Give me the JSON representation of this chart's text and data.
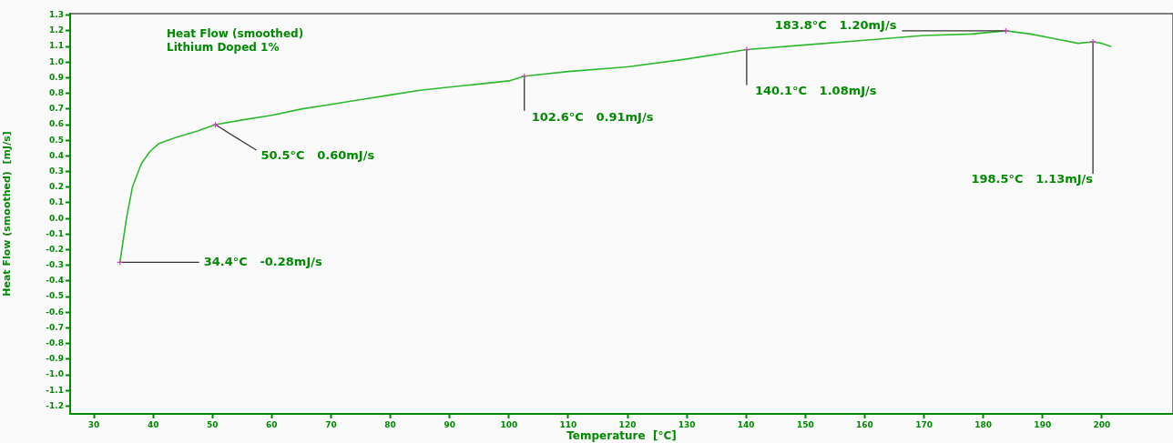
{
  "chart_data": {
    "type": "line",
    "title": "Heat Flow (smoothed)",
    "subtitle": "Lithium Doped 1%",
    "xlabel": "Temperature  [°C]",
    "ylabel": "Heat Flow (smoothed)  [mJ/s]",
    "x": [
      34.4,
      35.5,
      36.5,
      38,
      39.5,
      41,
      44,
      47.5,
      50.5,
      55,
      60,
      65,
      70,
      75,
      80,
      85,
      90,
      95,
      100,
      102.6,
      110,
      120,
      130,
      140.1,
      150,
      160,
      170,
      178,
      183.8,
      188,
      192,
      196,
      198.5,
      200,
      201.5
    ],
    "series": [
      {
        "color": "#2eb82e",
        "values": [
          -0.28,
          0.0,
          0.2,
          0.35,
          0.43,
          0.48,
          0.52,
          0.56,
          0.6,
          0.63,
          0.66,
          0.7,
          0.73,
          0.76,
          0.79,
          0.82,
          0.84,
          0.86,
          0.88,
          0.91,
          0.94,
          0.97,
          1.02,
          1.08,
          1.11,
          1.14,
          1.17,
          1.18,
          1.2,
          1.18,
          1.15,
          1.12,
          1.13,
          1.12,
          1.1
        ]
      }
    ],
    "xlim": [
      26,
      212
    ],
    "xticks": [
      30,
      40,
      50,
      60,
      70,
      80,
      90,
      100,
      110,
      120,
      130,
      140,
      150,
      160,
      170,
      180,
      190,
      200
    ],
    "ylim": [
      -1.25,
      1.31
    ],
    "yticks": [
      {
        "value": 1.3,
        "label": "1.3"
      },
      {
        "value": 1.2,
        "label": "1.2"
      },
      {
        "value": 1.1,
        "label": "1.1"
      },
      {
        "value": 1.0,
        "label": "1.0"
      },
      {
        "value": 0.9,
        "label": "0.9"
      },
      {
        "value": 0.8,
        "label": "0.8"
      },
      {
        "value": 0.7,
        "label": "0.7"
      },
      {
        "value": 0.6,
        "label": "0.6"
      },
      {
        "value": 0.5,
        "label": "0.5"
      },
      {
        "value": 0.4,
        "label": "0.4"
      },
      {
        "value": 0.3,
        "label": "0.3"
      },
      {
        "value": 0.2,
        "label": "0.2"
      },
      {
        "value": 0.1,
        "label": "0.1"
      },
      {
        "value": 0.0,
        "label": "0.0"
      },
      {
        "value": -0.1,
        "label": "-0.1"
      },
      {
        "value": -0.2,
        "label": "-0.2"
      },
      {
        "value": -0.3,
        "label": "-0.3"
      },
      {
        "value": -0.4,
        "label": "-0.4"
      },
      {
        "value": -0.5,
        "label": "-0.5"
      },
      {
        "value": -0.6,
        "label": "-0.6"
      },
      {
        "value": -0.7,
        "label": "-0.7"
      },
      {
        "value": -0.8,
        "label": "-0.8"
      },
      {
        "value": -0.9,
        "label": "-0.9"
      },
      {
        "value": -1.0,
        "label": "-1.0"
      },
      {
        "value": -1.1,
        "label": "-1.1"
      },
      {
        "value": -1.2,
        "label": "-1.2"
      }
    ],
    "grid": false,
    "legend": false,
    "marker": "none",
    "line_style": "solid",
    "annotations": [
      {
        "text": "34.4°C   -0.28mJ/s",
        "x": 34.4,
        "y": -0.28
      },
      {
        "text": "50.5°C   0.60mJ/s",
        "x": 50.5,
        "y": 0.6
      },
      {
        "text": "102.6°C   0.91mJ/s",
        "x": 102.6,
        "y": 0.91
      },
      {
        "text": "140.1°C   1.08mJ/s",
        "x": 140.1,
        "y": 1.08
      },
      {
        "text": "183.8°C   1.20mJ/s",
        "x": 183.8,
        "y": 1.2
      },
      {
        "text": "198.5°C   1.13mJ/s",
        "x": 198.5,
        "y": 1.13
      }
    ]
  }
}
